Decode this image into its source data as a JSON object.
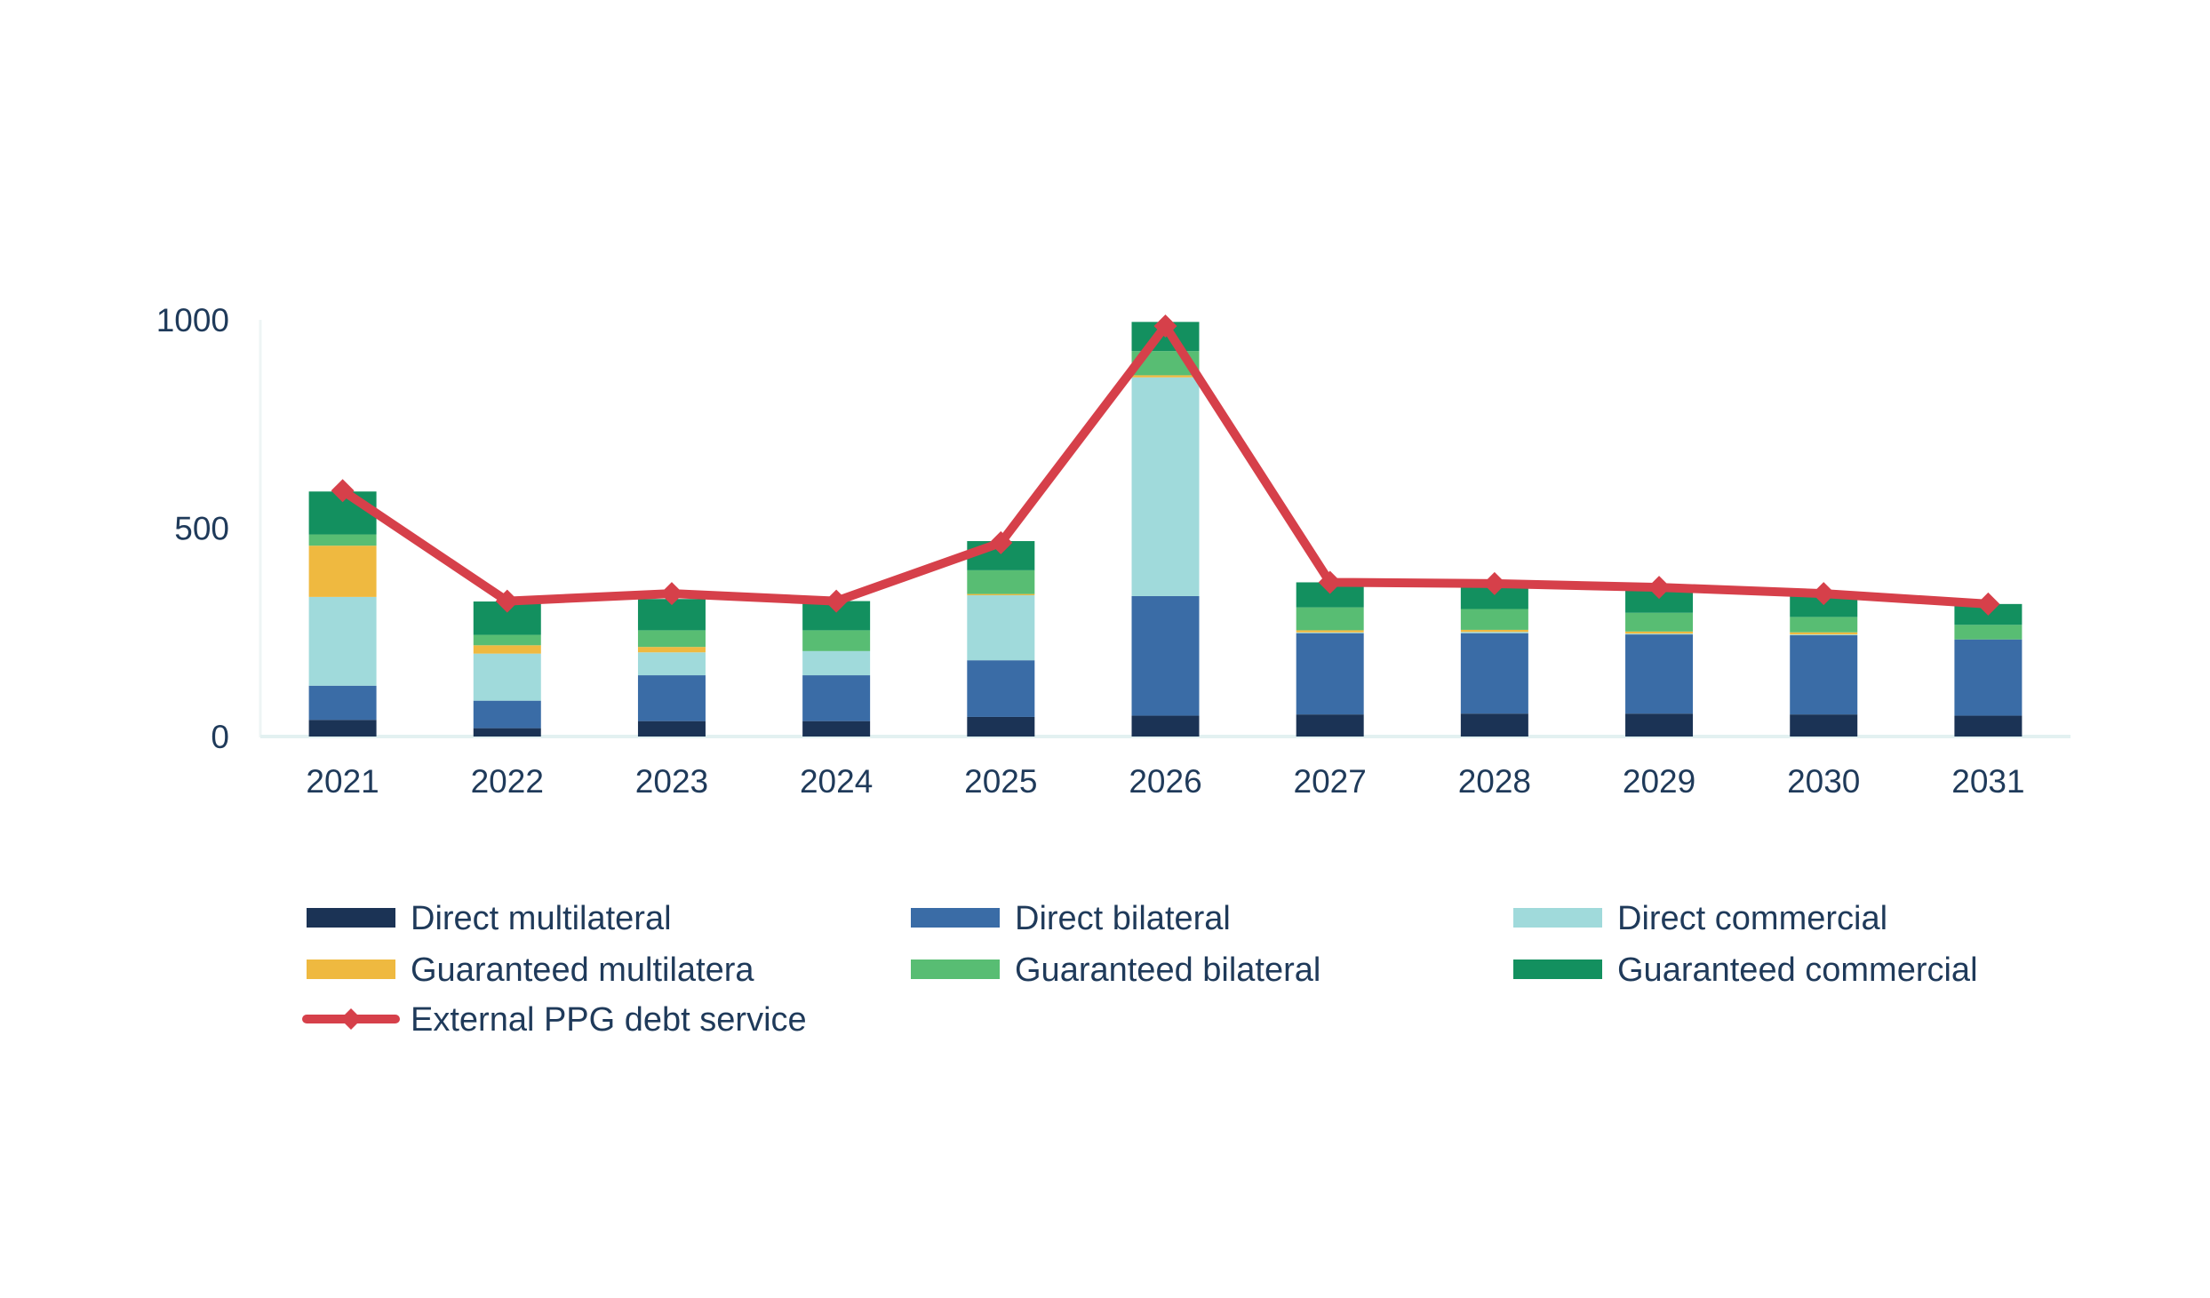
{
  "chart_data": {
    "type": "bar",
    "stacked": true,
    "title": "",
    "xlabel": "",
    "ylabel": "",
    "ylim": [
      0,
      1000
    ],
    "yticks": [
      0,
      500,
      1000
    ],
    "categories": [
      "2021",
      "2022",
      "2023",
      "2024",
      "2025",
      "2026",
      "2027",
      "2028",
      "2029",
      "2030",
      "2031"
    ],
    "series": [
      {
        "name": "Direct multilateral",
        "color": "#1b3355",
        "values": [
          40,
          20,
          37,
          37,
          47,
          50,
          53,
          55,
          55,
          53,
          50
        ]
      },
      {
        "name": "Direct bilateral",
        "color": "#3a6ca6",
        "values": [
          82,
          66,
          110,
          110,
          136,
          287,
          195,
          193,
          190,
          190,
          183
        ]
      },
      {
        "name": "Direct commercial",
        "color": "#a0dadb",
        "values": [
          213,
          113,
          55,
          58,
          156,
          525,
          2,
          3,
          2,
          2,
          0
        ]
      },
      {
        "name": "Guaranteed multilatera",
        "color": "#efb940",
        "values": [
          123,
          20,
          13,
          0,
          3,
          5,
          5,
          5,
          5,
          5,
          0
        ]
      },
      {
        "name": "Guaranteed bilateral",
        "color": "#58bd73",
        "values": [
          27,
          25,
          40,
          50,
          57,
          58,
          55,
          50,
          45,
          37,
          35
        ]
      },
      {
        "name": "Guaranteed commercial",
        "color": "#13905f",
        "values": [
          103,
          80,
          75,
          70,
          70,
          70,
          60,
          55,
          58,
          53,
          50
        ]
      }
    ],
    "line": {
      "name": "External PPG debt service",
      "color": "#d6404a",
      "marker": "diamond",
      "values": [
        590,
        325,
        343,
        325,
        465,
        985,
        370,
        367,
        358,
        343,
        318
      ]
    },
    "legend_position": "bottom"
  }
}
